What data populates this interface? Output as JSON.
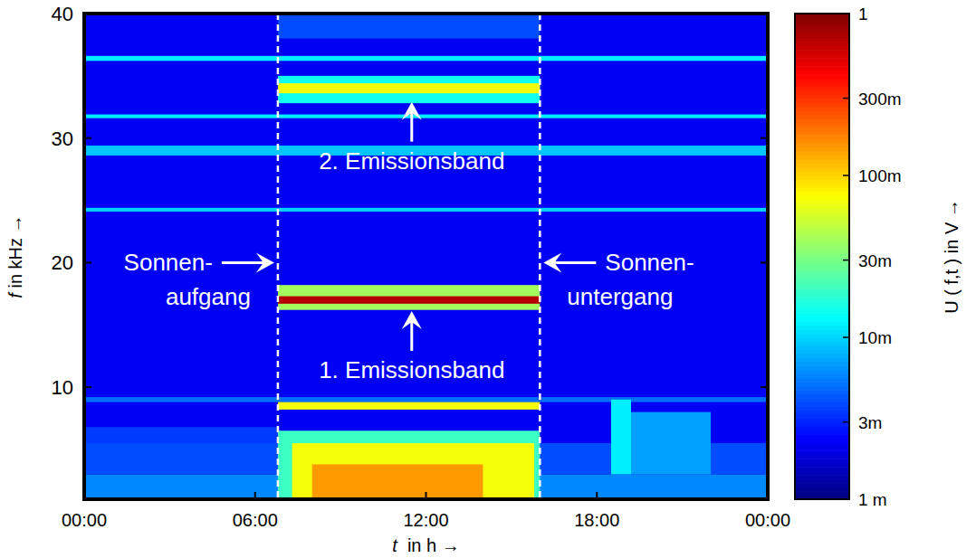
{
  "chart_data": {
    "type": "heatmap",
    "x_label": "t  in h →",
    "y_label": "f in kHz →",
    "xlim": [
      0,
      24
    ],
    "xticks": [
      {
        "value": 0,
        "label": "00:00"
      },
      {
        "value": 6,
        "label": "06:00"
      },
      {
        "value": 12,
        "label": "12:00"
      },
      {
        "value": 18,
        "label": "18:00"
      },
      {
        "value": 24,
        "label": "00:00"
      }
    ],
    "ylim": [
      1,
      40
    ],
    "yticks": [
      10,
      20,
      30,
      40
    ],
    "colorbar": {
      "label": "U ( f,t ) in V →",
      "range": [
        0.001,
        1
      ],
      "log": true,
      "ticks": [
        {
          "value": 0.001,
          "label": "1 m"
        },
        {
          "value": 0.003,
          "label": "3m"
        },
        {
          "value": 0.01,
          "label": "10m"
        },
        {
          "value": 0.03,
          "label": "30m"
        },
        {
          "value": 0.1,
          "label": "100m"
        },
        {
          "value": 0.3,
          "label": "300m"
        },
        1
      ]
    },
    "background": 0.0022,
    "bands": [
      {
        "f": [
          1,
          3
        ],
        "t": [
          0,
          24
        ],
        "value": 0.006
      },
      {
        "f": [
          3,
          5.5
        ],
        "t": [
          0,
          24
        ],
        "value": 0.004
      },
      {
        "f": [
          5.5,
          6.8
        ],
        "t": [
          0,
          6.8
        ],
        "value": 0.0035
      },
      {
        "f": [
          8.8,
          9.2
        ],
        "t": [
          0,
          24
        ],
        "value": 0.005
      },
      {
        "f": [
          28.6,
          29.4
        ],
        "t": [
          0,
          24
        ],
        "value": 0.009
      },
      {
        "f": [
          36.2,
          36.6
        ],
        "t": [
          0,
          24
        ],
        "value": 0.012
      },
      {
        "f": [
          31.6,
          31.9
        ],
        "t": [
          0,
          24
        ],
        "value": 0.012
      },
      {
        "f": [
          24.1,
          24.4
        ],
        "t": [
          0,
          24
        ],
        "value": 0.01
      },
      {
        "f": [
          38,
          40
        ],
        "t": [
          6.8,
          16
        ],
        "value": 0.004
      },
      {
        "f": [
          1,
          6.5
        ],
        "t": [
          6.8,
          16
        ],
        "value": 0.02
      },
      {
        "f": [
          1,
          5.5
        ],
        "t": [
          7.3,
          15.8
        ],
        "value": 0.07
      },
      {
        "f": [
          1,
          3.8
        ],
        "t": [
          8,
          14
        ],
        "value": 0.15
      },
      {
        "f": [
          16.2,
          18.2
        ],
        "t": [
          6.8,
          16
        ],
        "value": 0.04
      },
      {
        "f": [
          16.7,
          17.3
        ],
        "t": [
          6.8,
          16
        ],
        "value": 0.7
      },
      {
        "f": [
          8.2,
          8.8
        ],
        "t": [
          6.8,
          16
        ],
        "value": 0.07
      },
      {
        "f": [
          32.8,
          35
        ],
        "t": [
          6.8,
          16
        ],
        "value": 0.015
      },
      {
        "f": [
          33.6,
          34.4
        ],
        "t": [
          6.8,
          16
        ],
        "value": 0.07
      },
      {
        "f": [
          3,
          9
        ],
        "t": [
          18.5,
          19.2
        ],
        "value": 0.012
      },
      {
        "f": [
          3,
          8
        ],
        "t": [
          19.2,
          22
        ],
        "value": 0.007
      }
    ],
    "markers": [
      {
        "t": 6.8,
        "f": 20,
        "label": [
          "Sonnen-",
          "aufgang"
        ]
      },
      {
        "t": 16,
        "f": 20,
        "label": [
          "Sonnen-",
          "untergang"
        ]
      }
    ],
    "annotations": [
      {
        "text": "2. Emissionsband",
        "t": 11.5,
        "f": 33.2
      },
      {
        "text": "1. Emissionsband",
        "t": 11.5,
        "f": 16.4
      }
    ]
  }
}
